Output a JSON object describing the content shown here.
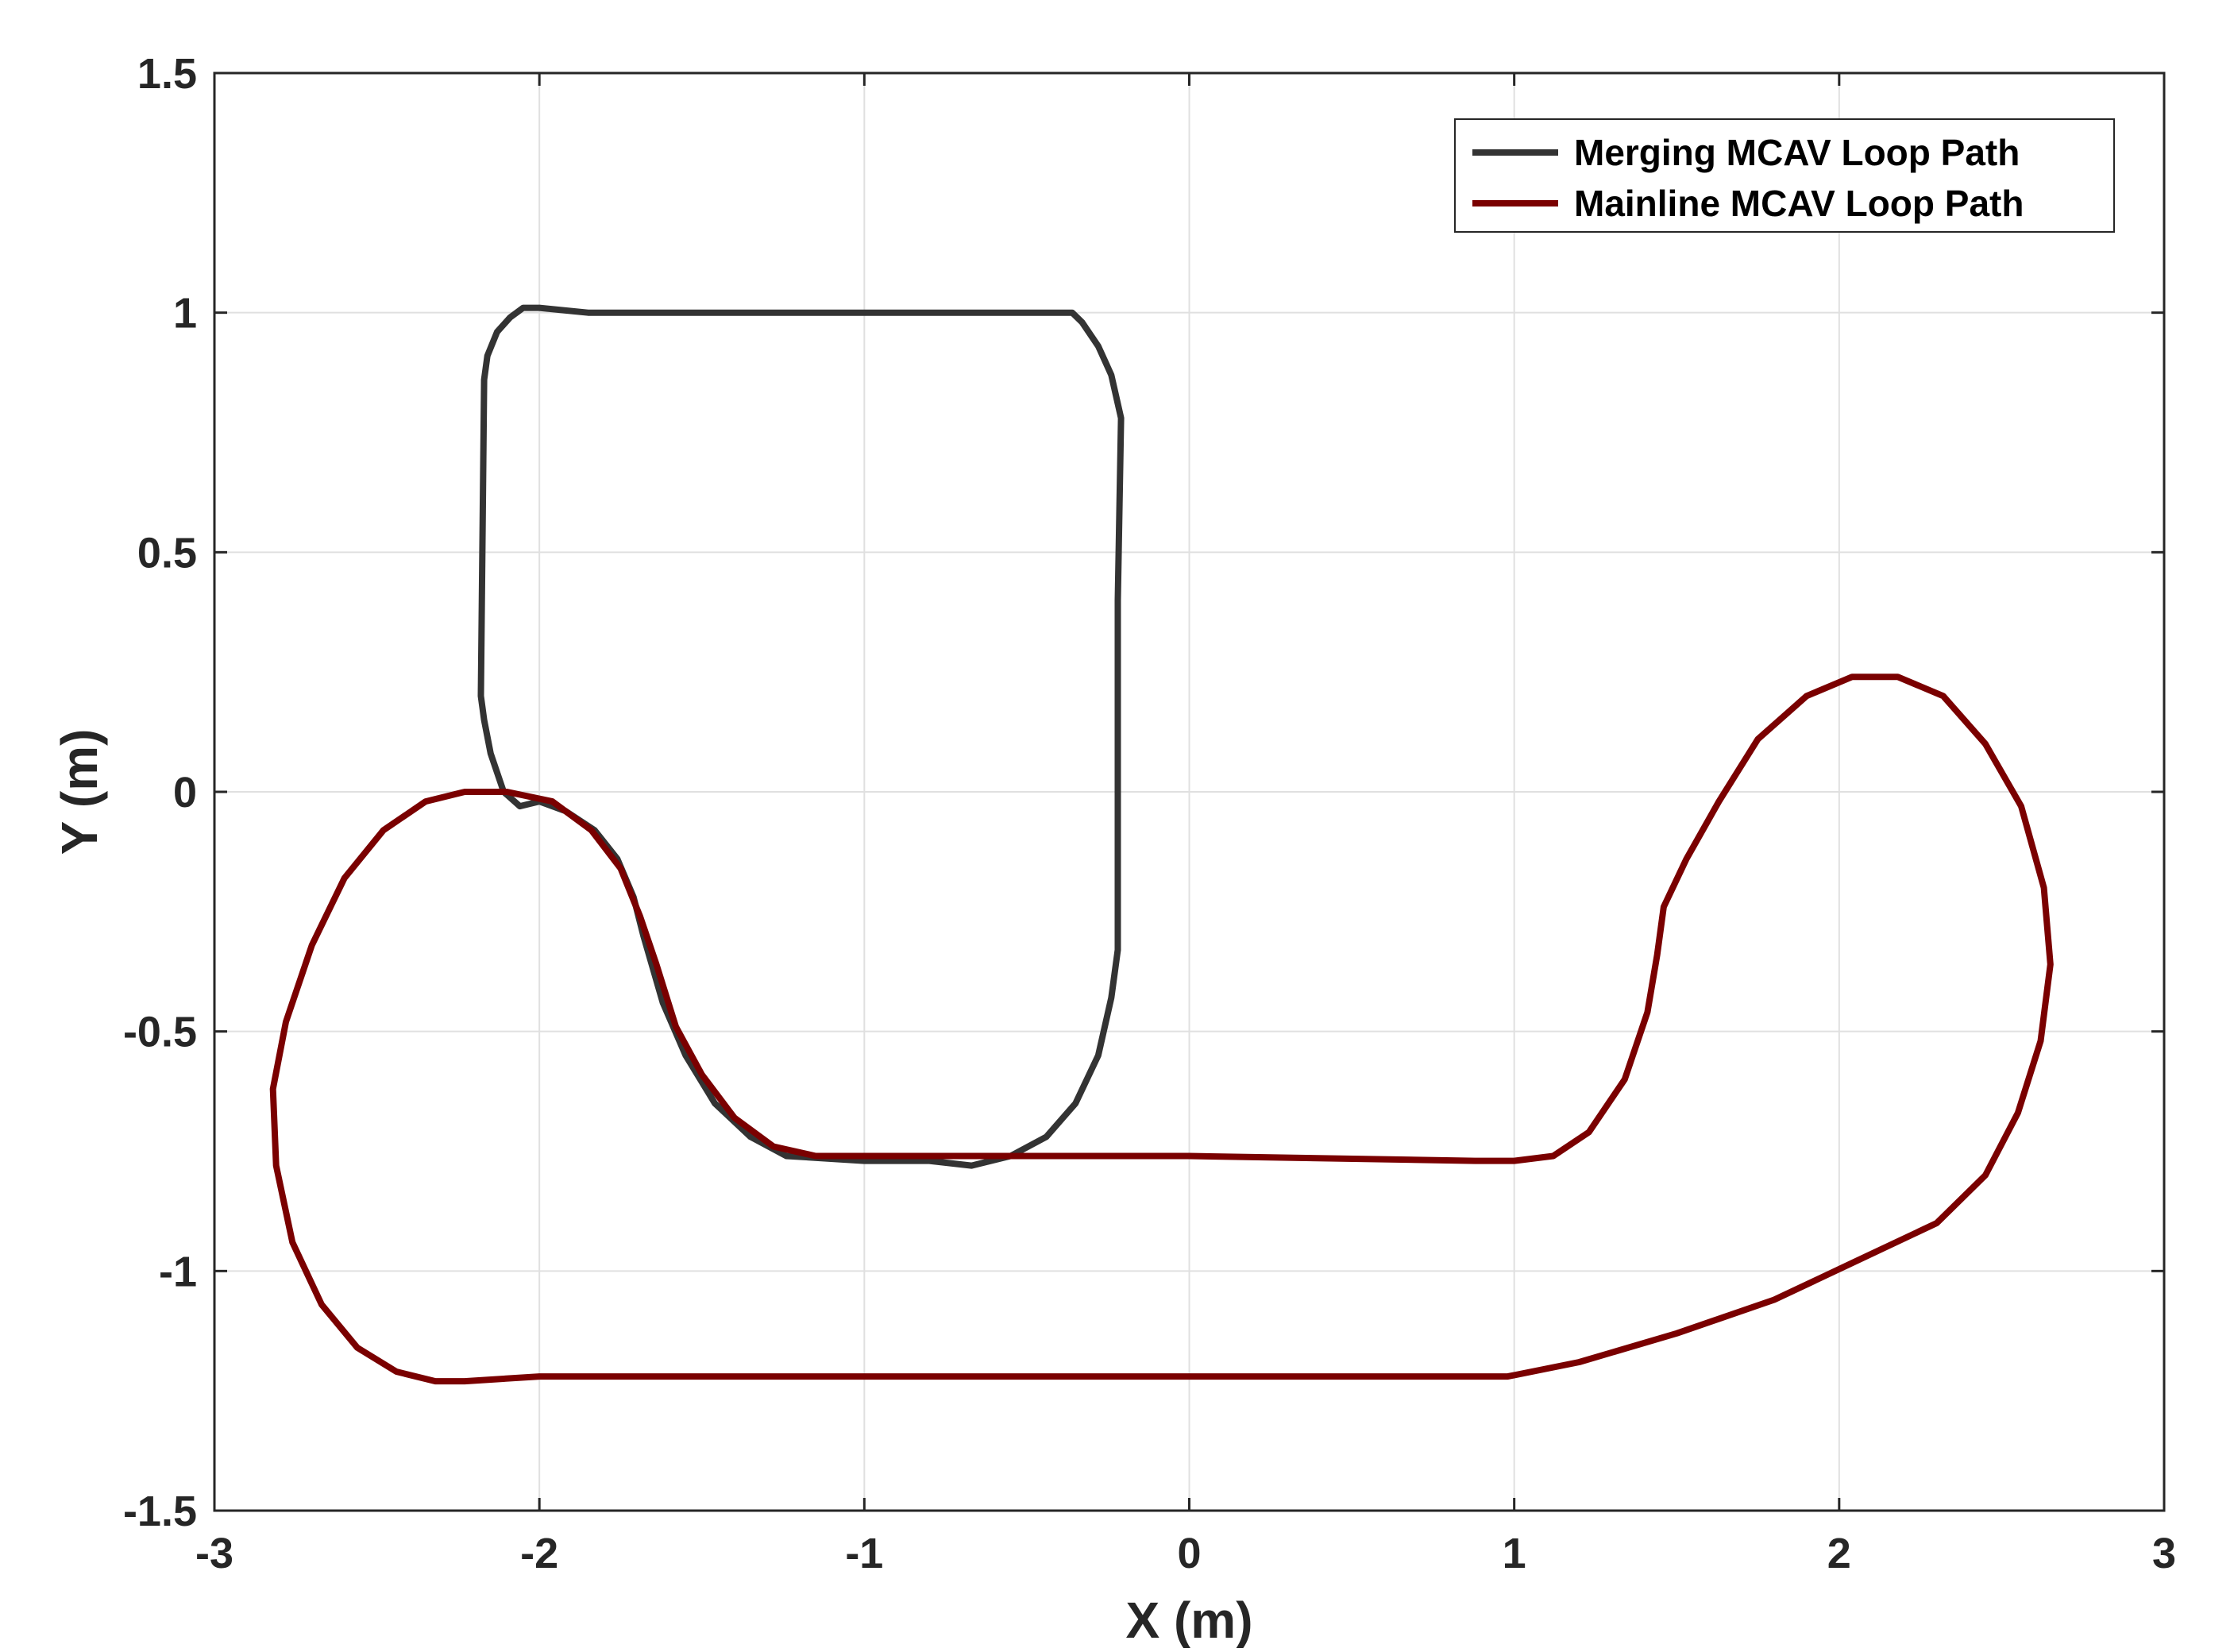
{
  "chart_data": {
    "type": "line",
    "title": "",
    "xlabel": "X (m)",
    "ylabel": "Y (m)",
    "xlim": [
      -3,
      3
    ],
    "ylim": [
      -1.5,
      1.5
    ],
    "grid": true,
    "legend_position": "top-right",
    "x_ticks": [
      -3,
      -2,
      -1,
      0,
      1,
      2,
      3
    ],
    "x_tick_labels": [
      "-3",
      "-2",
      "-1",
      "0",
      "1",
      "2",
      "3"
    ],
    "y_ticks": [
      1.5,
      1,
      0.5,
      0,
      -0.5,
      -1,
      -1.5
    ],
    "y_tick_labels": [
      "1.5",
      "1",
      "0.5",
      "0",
      "-0.5",
      "-1",
      "-1.5"
    ],
    "series": [
      {
        "name": "Merging MCAV Loop Path",
        "color": "#333333",
        "points": [
          [
            -2.06,
            -0.03
          ],
          [
            -2.11,
            -0.0
          ],
          [
            -2.15,
            0.08
          ],
          [
            -2.17,
            0.15
          ],
          [
            -2.18,
            0.2
          ],
          [
            -2.17,
            0.86
          ],
          [
            -2.16,
            0.91
          ],
          [
            -2.13,
            0.96
          ],
          [
            -2.09,
            0.99
          ],
          [
            -2.05,
            1.01
          ],
          [
            -2.0,
            1.01
          ],
          [
            -1.85,
            1.0
          ],
          [
            -1.0,
            1.0
          ],
          [
            -0.36,
            1.0
          ],
          [
            -0.33,
            0.98
          ],
          [
            -0.28,
            0.93
          ],
          [
            -0.24,
            0.87
          ],
          [
            -0.22,
            0.81
          ],
          [
            -0.21,
            0.78
          ],
          [
            -0.22,
            0.4
          ],
          [
            -0.22,
            0.0
          ],
          [
            -0.22,
            -0.33
          ],
          [
            -0.24,
            -0.43
          ],
          [
            -0.28,
            -0.55
          ],
          [
            -0.35,
            -0.65
          ],
          [
            -0.44,
            -0.72
          ],
          [
            -0.55,
            -0.76
          ],
          [
            -0.67,
            -0.78
          ],
          [
            -0.8,
            -0.77
          ],
          [
            -1.0,
            -0.77
          ],
          [
            -1.24,
            -0.76
          ],
          [
            -1.35,
            -0.72
          ],
          [
            -1.46,
            -0.65
          ],
          [
            -1.55,
            -0.55
          ],
          [
            -1.62,
            -0.44
          ],
          [
            -1.68,
            -0.3
          ],
          [
            -1.71,
            -0.22
          ],
          [
            -1.76,
            -0.14
          ],
          [
            -1.83,
            -0.08
          ],
          [
            -1.92,
            -0.04
          ],
          [
            -2.0,
            -0.02
          ],
          [
            -2.06,
            -0.03
          ]
        ]
      },
      {
        "name": "Mainline MCAV Loop Path",
        "color": "#7a0000",
        "points": [
          [
            -2.23,
            0.0
          ],
          [
            -2.35,
            -0.02
          ],
          [
            -2.48,
            -0.08
          ],
          [
            -2.6,
            -0.18
          ],
          [
            -2.7,
            -0.32
          ],
          [
            -2.78,
            -0.48
          ],
          [
            -2.82,
            -0.62
          ],
          [
            -2.81,
            -0.78
          ],
          [
            -2.76,
            -0.94
          ],
          [
            -2.67,
            -1.07
          ],
          [
            -2.56,
            -1.16
          ],
          [
            -2.44,
            -1.21
          ],
          [
            -2.32,
            -1.23
          ],
          [
            -2.23,
            -1.23
          ],
          [
            -2.0,
            -1.22
          ],
          [
            -1.0,
            -1.22
          ],
          [
            0.0,
            -1.22
          ],
          [
            0.98,
            -1.22
          ],
          [
            1.2,
            -1.19
          ],
          [
            1.5,
            -1.13
          ],
          [
            1.8,
            -1.06
          ],
          [
            2.05,
            -0.98
          ],
          [
            2.3,
            -0.9
          ],
          [
            2.45,
            -0.8
          ],
          [
            2.55,
            -0.67
          ],
          [
            2.62,
            -0.52
          ],
          [
            2.65,
            -0.36
          ],
          [
            2.63,
            -0.2
          ],
          [
            2.56,
            -0.03
          ],
          [
            2.45,
            0.1
          ],
          [
            2.32,
            0.2
          ],
          [
            2.18,
            0.24
          ],
          [
            2.04,
            0.24
          ],
          [
            1.9,
            0.2
          ],
          [
            1.75,
            0.11
          ],
          [
            1.63,
            -0.02
          ],
          [
            1.53,
            -0.14
          ],
          [
            1.46,
            -0.24
          ],
          [
            1.44,
            -0.34
          ],
          [
            1.41,
            -0.46
          ],
          [
            1.34,
            -0.6
          ],
          [
            1.23,
            -0.71
          ],
          [
            1.12,
            -0.76
          ],
          [
            1.0,
            -0.77
          ],
          [
            0.88,
            -0.77
          ],
          [
            0.0,
            -0.76
          ],
          [
            -1.0,
            -0.76
          ],
          [
            -1.15,
            -0.76
          ],
          [
            -1.28,
            -0.74
          ],
          [
            -1.4,
            -0.68
          ],
          [
            -1.5,
            -0.59
          ],
          [
            -1.58,
            -0.49
          ],
          [
            -1.64,
            -0.36
          ],
          [
            -1.69,
            -0.26
          ],
          [
            -1.75,
            -0.16
          ],
          [
            -1.84,
            -0.08
          ],
          [
            -1.96,
            -0.02
          ],
          [
            -2.1,
            0.0
          ],
          [
            -2.23,
            0.0
          ]
        ]
      }
    ]
  }
}
